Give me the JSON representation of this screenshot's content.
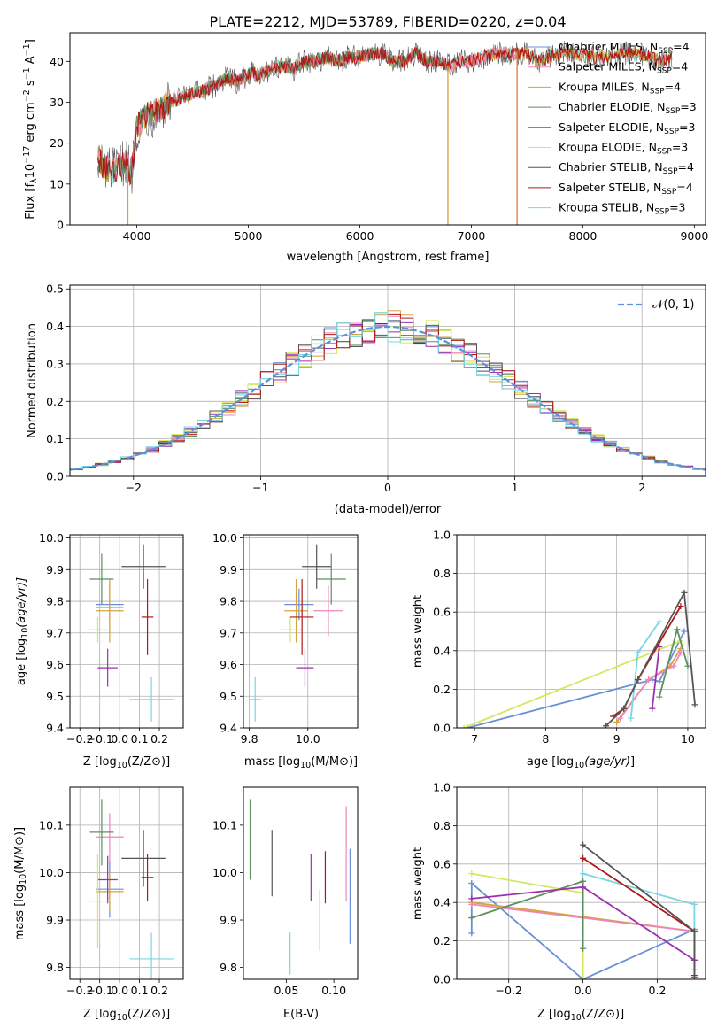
{
  "title": "PLATE=2212, MJD=53789, FIBERID=0220, z=0.04",
  "colors": {
    "Chabrier MILES": "#6a8fd8",
    "Salpeter MILES": "#ef86b7",
    "Kroupa MILES": "#d5a23f",
    "Chabrier ELODIE": "#5e8f5e",
    "Salpeter ELODIE": "#9b2fae",
    "Kroupa ELODIE": "#d2e95e",
    "Chabrier STELIB": "#555555",
    "Salpeter STELIB": "#b01818",
    "Kroupa STELIB": "#78d7e0",
    "orange": "#e07a35",
    "gauss": "#5b8fe0"
  },
  "chart_data": [
    {
      "id": "spectrum",
      "type": "line",
      "xlabel": "wavelength [Angstrom, rest frame]",
      "ylabel": "Flux [f",
      "xlim": [
        3400,
        9100
      ],
      "ylim": [
        0,
        47
      ],
      "xticks": [
        4000,
        5000,
        6000,
        7000,
        8000,
        9000
      ],
      "yticks": [
        0,
        10,
        20,
        30,
        40
      ],
      "grid": false,
      "legend_position": "right",
      "legend": [
        {
          "label": "Chabrier MILES, N",
          "nssp": "4",
          "key": "Chabrier MILES"
        },
        {
          "label": "Salpeter MILES, N",
          "nssp": "4",
          "key": "Salpeter MILES"
        },
        {
          "label": "Kroupa MILES, N",
          "nssp": "4",
          "key": "Kroupa MILES"
        },
        {
          "label": "Chabrier ELODIE, N",
          "nssp": "3",
          "key": "Chabrier ELODIE"
        },
        {
          "label": "Salpeter ELODIE, N",
          "nssp": "3",
          "key": "Salpeter ELODIE"
        },
        {
          "label": "Kroupa ELODIE, N",
          "nssp": "3",
          "key": "Kroupa ELODIE"
        },
        {
          "label": "Chabrier STELIB, N",
          "nssp": "4",
          "key": "Chabrier STELIB"
        },
        {
          "label": "Salpeter STELIB, N",
          "nssp": "4",
          "key": "Salpeter STELIB"
        },
        {
          "label": "Kroupa STELIB, N",
          "nssp": "3",
          "key": "Kroupa STELIB"
        }
      ],
      "envelope": {
        "x": [
          3650,
          3700,
          3800,
          3900,
          3950,
          4000,
          4100,
          4200,
          4300,
          4400,
          4500,
          4600,
          4700,
          4800,
          4900,
          5000,
          5100,
          5200,
          5300,
          5400,
          5500,
          5600,
          5700,
          5800,
          5900,
          6000,
          6100,
          6200,
          6300,
          6400,
          6500,
          6600,
          6700,
          6800,
          6900,
          7000,
          7100,
          7200,
          7300,
          7400,
          7500,
          7600,
          7700,
          7800,
          7900,
          8000,
          8100,
          8200,
          8300,
          8400,
          8500,
          8600,
          8700,
          8800
        ],
        "y": [
          17,
          14,
          13,
          16,
          12,
          24,
          27,
          28,
          30,
          31,
          32,
          33,
          34,
          36,
          35,
          37,
          37,
          38,
          39,
          38,
          40,
          40,
          41,
          40,
          41,
          41,
          42,
          42,
          40,
          40,
          42,
          40,
          40,
          39,
          40,
          40,
          41,
          42,
          42,
          42,
          42,
          40,
          41,
          42,
          42,
          42,
          41,
          41,
          42,
          42,
          42,
          41,
          40,
          41
        ]
      },
      "model_cutoffs": [
        {
          "key": "Kroupa MILES",
          "x": 3920
        },
        {
          "key": "Kroupa MILES",
          "x": 6790
        },
        {
          "key": "Salpeter MILES",
          "x": 7410
        }
      ]
    },
    {
      "id": "residual_hist",
      "type": "histogram",
      "xlabel": "(data-model)/error",
      "ylabel": "Normed distribution",
      "xlim": [
        -2.5,
        2.5
      ],
      "ylim": [
        0,
        0.51
      ],
      "xticks": [
        -2,
        -1,
        0,
        1,
        2
      ],
      "yticks": [
        0.0,
        0.1,
        0.2,
        0.3,
        0.4,
        0.5
      ],
      "grid": true,
      "legend_position": "top-right",
      "legend": "𝒩(0, 1)",
      "bin_width": 0.1
    },
    {
      "id": "age_vs_Z",
      "type": "errorbar",
      "xlabel": "Z [log",
      "ylabel": "age  [log",
      "xlim": [
        -0.25,
        0.32
      ],
      "ylim": [
        9.4,
        10.01
      ],
      "xticks": [
        -0.2,
        -0.1,
        0.0,
        0.1,
        0.2
      ],
      "yticks": [
        9.4,
        9.5,
        9.6,
        9.7,
        9.8,
        9.9,
        10.0
      ],
      "grid": true,
      "points": [
        {
          "key": "Chabrier MILES",
          "x": -0.05,
          "xerr": 0.07,
          "y": 9.79,
          "yerr": 0.05
        },
        {
          "key": "Salpeter MILES",
          "x": -0.05,
          "xerr": 0.07,
          "y": 9.78,
          "yerr": 0.08
        },
        {
          "key": "Kroupa MILES",
          "x": -0.05,
          "xerr": 0.07,
          "y": 9.77,
          "yerr": 0.1
        },
        {
          "key": "Chabrier ELODIE",
          "x": -0.09,
          "xerr": 0.06,
          "y": 9.87,
          "yerr": 0.08
        },
        {
          "key": "Salpeter ELODIE",
          "x": -0.06,
          "xerr": 0.05,
          "y": 9.59,
          "yerr": 0.06
        },
        {
          "key": "Kroupa ELODIE",
          "x": -0.11,
          "xerr": 0.05,
          "y": 9.71,
          "yerr": 0.04
        },
        {
          "key": "Chabrier STELIB",
          "x": 0.12,
          "xerr": 0.11,
          "y": 9.91,
          "yerr": 0.07
        },
        {
          "key": "Salpeter STELIB",
          "x": 0.14,
          "xerr": 0.03,
          "y": 9.75,
          "yerr": 0.12
        },
        {
          "key": "Kroupa STELIB",
          "x": 0.16,
          "xerr": 0.11,
          "y": 9.49,
          "yerr": 0.07
        }
      ]
    },
    {
      "id": "age_vs_mass",
      "type": "errorbar",
      "xlabel": "mass [log",
      "ylabel": "",
      "xlim": [
        9.78,
        10.17
      ],
      "ylim": [
        9.4,
        10.01
      ],
      "xticks": [
        9.8,
        10.0
      ],
      "yticks": [
        9.4,
        9.5,
        9.6,
        9.7,
        9.8,
        9.9,
        10.0
      ],
      "grid": true,
      "points": [
        {
          "key": "Chabrier MILES",
          "x": 9.97,
          "xerr": 0.05,
          "y": 9.79,
          "yerr": 0.05
        },
        {
          "key": "Salpeter MILES",
          "x": 10.07,
          "xerr": 0.05,
          "y": 9.77,
          "yerr": 0.08
        },
        {
          "key": "Kroupa MILES",
          "x": 9.96,
          "xerr": 0.04,
          "y": 9.77,
          "yerr": 0.1
        },
        {
          "key": "Chabrier ELODIE",
          "x": 10.08,
          "xerr": 0.05,
          "y": 9.87,
          "yerr": 0.08
        },
        {
          "key": "Salpeter ELODIE",
          "x": 9.99,
          "xerr": 0.03,
          "y": 9.59,
          "yerr": 0.06
        },
        {
          "key": "Kroupa ELODIE",
          "x": 9.94,
          "xerr": 0.04,
          "y": 9.71,
          "yerr": 0.04
        },
        {
          "key": "Chabrier STELIB",
          "x": 10.03,
          "xerr": 0.05,
          "y": 9.91,
          "yerr": 0.07
        },
        {
          "key": "Salpeter STELIB",
          "x": 9.98,
          "xerr": 0.04,
          "y": 9.75,
          "yerr": 0.12
        },
        {
          "key": "Kroupa STELIB",
          "x": 9.82,
          "xerr": 0.02,
          "y": 9.49,
          "yerr": 0.07
        }
      ]
    },
    {
      "id": "weights_vs_age",
      "type": "line",
      "xlabel": "age  [log",
      "ylabel": "mass weight",
      "xlim": [
        6.75,
        10.25
      ],
      "ylim": [
        0,
        1.0
      ],
      "xticks": [
        7,
        8,
        9,
        10
      ],
      "yticks": [
        0.0,
        0.2,
        0.4,
        0.6,
        0.8,
        1.0
      ],
      "grid": true,
      "series": [
        {
          "key": "Chabrier MILES",
          "x": [
            6.9,
            9.5,
            9.6,
            9.95
          ],
          "y": [
            0.0,
            0.25,
            0.24,
            0.5
          ]
        },
        {
          "key": "Kroupa ELODIE",
          "x": [
            6.85,
            9.9
          ],
          "y": [
            0.0,
            0.45
          ]
        },
        {
          "key": "Kroupa MILES",
          "x": [
            9.0,
            9.45,
            9.75,
            9.9
          ],
          "y": [
            0.03,
            0.25,
            0.32,
            0.41
          ]
        },
        {
          "key": "Salpeter MILES",
          "x": [
            9.05,
            9.45,
            9.8,
            9.9
          ],
          "y": [
            0.05,
            0.25,
            0.32,
            0.39
          ]
        },
        {
          "key": "Kroupa STELIB",
          "x": [
            9.2,
            9.3,
            9.6
          ],
          "y": [
            0.05,
            0.39,
            0.55
          ]
        },
        {
          "key": "Chabrier ELODIE",
          "x": [
            9.6,
            9.85,
            10.0
          ],
          "y": [
            0.16,
            0.51,
            0.32
          ]
        },
        {
          "key": "Salpeter ELODIE",
          "x": [
            9.5,
            9.6
          ],
          "y": [
            0.1,
            0.42
          ]
        },
        {
          "key": "Salpeter STELIB",
          "x": [
            8.95,
            9.1,
            9.3,
            9.9
          ],
          "y": [
            0.06,
            0.1,
            0.25,
            0.63
          ]
        },
        {
          "key": "Chabrier STELIB",
          "x": [
            8.85,
            9.1,
            9.3,
            9.95,
            10.1
          ],
          "y": [
            0.01,
            0.1,
            0.25,
            0.7,
            0.12
          ]
        }
      ]
    },
    {
      "id": "mass_vs_Z",
      "type": "errorbar",
      "xlabel": "Z [log",
      "ylabel": "mass [log",
      "xlim": [
        -0.25,
        0.32
      ],
      "ylim": [
        9.775,
        10.18
      ],
      "xticks": [
        -0.2,
        -0.1,
        0.0,
        0.1,
        0.2
      ],
      "yticks": [
        9.8,
        9.9,
        10.0,
        10.1
      ],
      "grid": true,
      "points": [
        {
          "key": "Chabrier MILES",
          "x": -0.05,
          "xerr": 0.07,
          "y": 9.965,
          "yerr": 0.06
        },
        {
          "key": "Salpeter MILES",
          "x": -0.05,
          "xerr": 0.07,
          "y": 10.075,
          "yerr": 0.05
        },
        {
          "key": "Kroupa MILES",
          "x": -0.05,
          "xerr": 0.07,
          "y": 9.96,
          "yerr": 0.04
        },
        {
          "key": "Chabrier ELODIE",
          "x": -0.09,
          "xerr": 0.06,
          "y": 10.085,
          "yerr": 0.07
        },
        {
          "key": "Salpeter ELODIE",
          "x": -0.06,
          "xerr": 0.05,
          "y": 9.985,
          "yerr": 0.05
        },
        {
          "key": "Kroupa ELODIE",
          "x": -0.11,
          "xerr": 0.05,
          "y": 9.94,
          "yerr": 0.1
        },
        {
          "key": "Chabrier STELIB",
          "x": 0.12,
          "xerr": 0.11,
          "y": 10.03,
          "yerr": 0.06
        },
        {
          "key": "Salpeter STELIB",
          "x": 0.14,
          "xerr": 0.03,
          "y": 9.99,
          "yerr": 0.05
        },
        {
          "key": "Kroupa STELIB",
          "x": 0.16,
          "xerr": 0.11,
          "y": 9.818,
          "yerr": 0.055
        }
      ]
    },
    {
      "id": "mass_vs_ebv",
      "type": "errorbar",
      "xlabel": "E(B-V)",
      "ylabel": "",
      "xlim": [
        0.005,
        0.125
      ],
      "ylim": [
        9.775,
        10.18
      ],
      "xticks": [
        0.05,
        0.1
      ],
      "yticks": [
        9.8,
        9.9,
        10.0,
        10.1
      ],
      "grid": false,
      "points": [
        {
          "key": "Chabrier ELODIE",
          "x": 0.012,
          "xerr": 0,
          "y": 10.07,
          "yerr": 0.085
        },
        {
          "key": "Chabrier STELIB",
          "x": 0.035,
          "xerr": 0,
          "y": 10.02,
          "yerr": 0.07
        },
        {
          "key": "Kroupa STELIB",
          "x": 0.054,
          "xerr": 0,
          "y": 9.83,
          "yerr": 0.045
        },
        {
          "key": "Salpeter ELODIE",
          "x": 0.076,
          "xerr": 0,
          "y": 9.99,
          "yerr": 0.05
        },
        {
          "key": "Kroupa ELODIE",
          "x": 0.085,
          "xerr": 0,
          "y": 9.9,
          "yerr": 0.065
        },
        {
          "key": "Salpeter STELIB",
          "x": 0.091,
          "xerr": 0,
          "y": 9.99,
          "yerr": 0.055
        },
        {
          "key": "Salpeter MILES",
          "x": 0.113,
          "xerr": 0,
          "y": 10.04,
          "yerr": 0.1
        },
        {
          "key": "Chabrier MILES",
          "x": 0.117,
          "xerr": 0,
          "y": 9.95,
          "yerr": 0.1
        }
      ]
    },
    {
      "id": "weights_vs_Z",
      "type": "line",
      "xlabel": "Z [log",
      "ylabel": "mass weight",
      "xlim": [
        -0.34,
        0.33
      ],
      "ylim": [
        0,
        1.0
      ],
      "xticks": [
        -0.2,
        0.0,
        0.2
      ],
      "yticks": [
        0.0,
        0.2,
        0.4,
        0.6,
        0.8,
        1.0
      ],
      "grid": true,
      "series": [
        {
          "key": "Chabrier MILES",
          "x": [
            -0.3,
            -0.3,
            0.0,
            0.3
          ],
          "y": [
            0.24,
            0.5,
            0.0,
            0.26
          ]
        },
        {
          "key": "Kroupa ELODIE",
          "x": [
            -0.3,
            0.0,
            0.0
          ],
          "y": [
            0.55,
            0.45,
            0.0
          ]
        },
        {
          "key": "Kroupa MILES",
          "x": [
            -0.3,
            0.3
          ],
          "y": [
            0.4,
            0.25
          ]
        },
        {
          "key": "Salpeter MILES",
          "x": [
            -0.3,
            0.3
          ],
          "y": [
            0.39,
            0.25
          ]
        },
        {
          "key": "Kroupa STELIB",
          "x": [
            0.0,
            0.3,
            0.3
          ],
          "y": [
            0.55,
            0.39,
            0.05
          ]
        },
        {
          "key": "Chabrier ELODIE",
          "x": [
            -0.3,
            0.0,
            0.0
          ],
          "y": [
            0.32,
            0.51,
            0.16
          ]
        },
        {
          "key": "Salpeter ELODIE",
          "x": [
            -0.3,
            0.0,
            0.3
          ],
          "y": [
            0.42,
            0.48,
            0.1
          ]
        },
        {
          "key": "Salpeter STELIB",
          "x": [
            0.0,
            0.3,
            0.3
          ],
          "y": [
            0.63,
            0.25,
            0.02
          ]
        },
        {
          "key": "Chabrier STELIB",
          "x": [
            0.0,
            0.3,
            0.3
          ],
          "y": [
            0.7,
            0.25,
            0.01
          ]
        }
      ]
    }
  ],
  "sun_symbol": "⊙"
}
